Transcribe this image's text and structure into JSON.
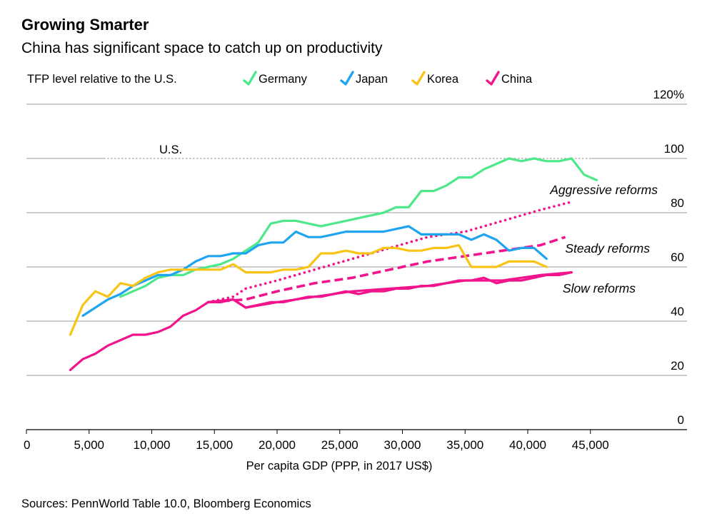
{
  "chart_data": {
    "type": "line",
    "title": "Growing Smarter",
    "subtitle": "China has significant space to catch up on productivity",
    "ylabel": "TFP level relative to the U.S.",
    "xlabel": "Per capita GDP (PPP, in 2017 US$)",
    "source": "Sources: PennWorld Table 10.0, Bloomberg Economics",
    "xlim": [
      0,
      52000
    ],
    "ylim": [
      0,
      120
    ],
    "xticks": [
      {
        "value": 0,
        "label": "0"
      },
      {
        "value": 5000,
        "label": "5,000"
      },
      {
        "value": 10000,
        "label": "10,000"
      },
      {
        "value": 15000,
        "label": "15,000"
      },
      {
        "value": 20000,
        "label": "20,000"
      },
      {
        "value": 25000,
        "label": "25,000"
      },
      {
        "value": 30000,
        "label": "30,000"
      },
      {
        "value": 35000,
        "label": "35,000"
      },
      {
        "value": 40000,
        "label": "40,000"
      },
      {
        "value": 45000,
        "label": "45,000"
      }
    ],
    "yticks": [
      {
        "value": 120,
        "label": "120%"
      },
      {
        "value": 100,
        "label": "100"
      },
      {
        "value": 80,
        "label": "80"
      },
      {
        "value": 60,
        "label": "60"
      },
      {
        "value": 40,
        "label": "40"
      },
      {
        "value": 20,
        "label": "20"
      },
      {
        "value": 0,
        "label": "0"
      }
    ],
    "reference_line": {
      "label": "U.S.",
      "value": 100
    },
    "legend_position": "top",
    "series": [
      {
        "name": "Germany",
        "color": "#4ee88a",
        "style": "solid",
        "x": [
          7500,
          8500,
          9500,
          10500,
          11500,
          12500,
          13500,
          14500,
          15500,
          16500,
          17500,
          18500,
          19500,
          20500,
          21500,
          22500,
          23500,
          24500,
          25500,
          26500,
          27500,
          28500,
          29500,
          30500,
          31500,
          32500,
          33500,
          34500,
          35500,
          36500,
          37500,
          38500,
          39500,
          40500,
          41500,
          42500,
          43500,
          44500,
          45500
        ],
        "y": [
          49,
          51,
          53,
          56,
          57,
          57,
          59,
          60,
          61,
          63,
          66,
          69,
          76,
          77,
          77,
          76,
          75,
          76,
          77,
          78,
          79,
          80,
          82,
          82,
          88,
          88,
          90,
          93,
          93,
          96,
          98,
          100,
          99,
          100,
          99,
          99,
          100,
          94,
          92
        ]
      },
      {
        "name": "Japan",
        "color": "#1fa5ef",
        "style": "solid",
        "x": [
          4500,
          5500,
          6500,
          7500,
          8500,
          9500,
          10500,
          11500,
          12500,
          13500,
          14500,
          15500,
          16500,
          17500,
          18500,
          19500,
          20500,
          21500,
          22500,
          23500,
          24500,
          25500,
          26500,
          27500,
          28500,
          29500,
          30500,
          31500,
          32500,
          33500,
          34500,
          35500,
          36500,
          37500,
          38500,
          39500,
          40500,
          41500
        ],
        "y": [
          42,
          45,
          48,
          50,
          53,
          55,
          57,
          57,
          59,
          62,
          64,
          64,
          65,
          65,
          68,
          69,
          69,
          73,
          71,
          71,
          72,
          73,
          73,
          73,
          73,
          74,
          75,
          72,
          72,
          72,
          72,
          70,
          72,
          70,
          66,
          67,
          67,
          63
        ]
      },
      {
        "name": "Korea",
        "color": "#f7c417",
        "style": "solid",
        "x": [
          3500,
          4500,
          5500,
          6500,
          7500,
          8500,
          9500,
          10500,
          11500,
          12500,
          13500,
          14500,
          15500,
          16500,
          17500,
          18500,
          19500,
          20500,
          21500,
          22500,
          23500,
          24500,
          25500,
          26500,
          27500,
          28500,
          29500,
          30500,
          31500,
          32500,
          33500,
          34500,
          35500,
          36500,
          37500,
          38500,
          39500,
          40500,
          41500
        ],
        "y": [
          35,
          46,
          51,
          49,
          54,
          53,
          56,
          58,
          59,
          59,
          59,
          59,
          59,
          61,
          58,
          58,
          58,
          59,
          59,
          60,
          65,
          65,
          66,
          65,
          65,
          67,
          67,
          66,
          66,
          67,
          67,
          68,
          60,
          60,
          60,
          62,
          62,
          62,
          60
        ]
      },
      {
        "name": "China",
        "color": "#f2148d",
        "style": "solid",
        "x": [
          3500,
          4500,
          5500,
          6500,
          7500,
          8500,
          9500,
          10500,
          11500,
          12500,
          13500,
          14500,
          15500,
          16500,
          17500,
          18500,
          19500,
          20500,
          21500,
          22500,
          23500,
          24500,
          25500,
          26500,
          27500,
          28500,
          29500,
          30500,
          31500,
          32500,
          33500,
          34500,
          35500,
          36500,
          37500,
          38500,
          39500,
          40500,
          41500,
          42500,
          43500
        ],
        "y": [
          22,
          26,
          28,
          31,
          33,
          35,
          35,
          36,
          38,
          42,
          44,
          47,
          47,
          48,
          45,
          46,
          47,
          47,
          48,
          49,
          49,
          50,
          51,
          50,
          51,
          51,
          52,
          52,
          53,
          53,
          54,
          55,
          55,
          56,
          54,
          55,
          55,
          56,
          57,
          57,
          58
        ]
      },
      {
        "name": "Aggressive reforms",
        "color": "#f2148d",
        "style": "dotted",
        "x": [
          14500,
          16500,
          17500,
          20000,
          23000,
          26000,
          29000,
          32000,
          35000,
          38000,
          41000,
          43500
        ],
        "y": [
          47,
          49,
          52,
          55,
          59,
          63,
          67,
          71,
          73,
          77,
          81,
          84
        ]
      },
      {
        "name": "Steady reforms",
        "color": "#f2148d",
        "style": "dashed",
        "x": [
          14500,
          17500,
          20000,
          23000,
          26000,
          29000,
          32000,
          35000,
          38000,
          41000,
          43000
        ],
        "y": [
          47,
          48,
          51,
          54,
          56,
          59,
          62,
          64,
          66,
          68,
          71
        ]
      },
      {
        "name": "Slow reforms",
        "color": "#f2148d",
        "style": "solid",
        "x": [
          14500,
          16500,
          17500,
          20000,
          23000,
          26000,
          29000,
          32000,
          35000,
          38000,
          41000,
          43500
        ],
        "y": [
          47,
          48,
          45,
          47,
          49,
          51,
          52,
          53,
          55,
          55,
          57,
          58
        ]
      }
    ],
    "legend": [
      {
        "name": "Germany",
        "color": "#4ee88a"
      },
      {
        "name": "Japan",
        "color": "#1fa5ef"
      },
      {
        "name": "Korea",
        "color": "#f7c417"
      },
      {
        "name": "China",
        "color": "#f2148d"
      }
    ],
    "annotations": [
      {
        "text": "Aggressive reforms",
        "series": "Aggressive reforms"
      },
      {
        "text": "Steady reforms",
        "series": "Steady reforms"
      },
      {
        "text": "Slow reforms",
        "series": "Slow reforms"
      }
    ]
  }
}
